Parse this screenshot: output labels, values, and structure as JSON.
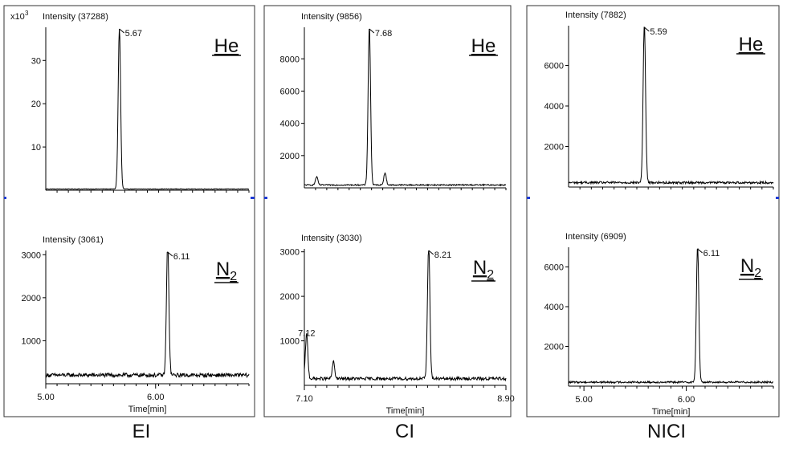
{
  "chart_data": [
    {
      "type": "line",
      "group": "EI",
      "panel": "top",
      "gas": "He",
      "title": "Intensity (37288)",
      "y_multiplier_label": "x10",
      "y_multiplier_exp": "3",
      "xlabel": "",
      "ylabel": "",
      "xlim": [
        5.0,
        6.85
      ],
      "ylim": [
        0,
        37288
      ],
      "x_ticks": [],
      "y_ticks": [
        {
          "value": 10000,
          "label": "10"
        },
        {
          "value": 20000,
          "label": "20"
        },
        {
          "value": 30000,
          "label": "30"
        }
      ],
      "peaks": [
        {
          "rt": 5.67,
          "height": 37288,
          "label": "5.67"
        }
      ],
      "baseline_level": 300,
      "noise_amplitude": 60
    },
    {
      "type": "line",
      "group": "EI",
      "panel": "bottom",
      "gas": "N",
      "gas_subscript": "2",
      "title": "Intensity (3061)",
      "xlabel": "Time[min]",
      "ylabel": "",
      "xlim": [
        5.0,
        6.85
      ],
      "ylim": [
        0,
        3061
      ],
      "x_ticks": [
        {
          "value": 5.0,
          "label": "5.00"
        },
        {
          "value": 6.0,
          "label": "6.00"
        }
      ],
      "y_ticks": [
        {
          "value": 1000,
          "label": "1000"
        },
        {
          "value": 2000,
          "label": "2000"
        },
        {
          "value": 3000,
          "label": "3000"
        }
      ],
      "peaks": [
        {
          "rt": 6.11,
          "height": 3061,
          "label": "6.11"
        }
      ],
      "baseline_level": 200,
      "noise_amplitude": 45
    },
    {
      "type": "line",
      "group": "CI",
      "panel": "top",
      "gas": "He",
      "title": "Intensity (9856)",
      "xlabel": "",
      "ylabel": "",
      "xlim": [
        7.1,
        8.9
      ],
      "ylim": [
        0,
        9856
      ],
      "x_ticks": [],
      "y_ticks": [
        {
          "value": 2000,
          "label": "2000"
        },
        {
          "value": 4000,
          "label": "4000"
        },
        {
          "value": 6000,
          "label": "6000"
        },
        {
          "value": 8000,
          "label": "8000"
        }
      ],
      "peaks": [
        {
          "rt": 7.68,
          "height": 9856,
          "label": "7.68"
        },
        {
          "rt": 7.82,
          "height": 750,
          "label": ""
        },
        {
          "rt": 7.21,
          "height": 500,
          "label": ""
        }
      ],
      "baseline_level": 180,
      "noise_amplitude": 40
    },
    {
      "type": "line",
      "group": "CI",
      "panel": "bottom",
      "gas": "N",
      "gas_subscript": "2",
      "title": "Intensity (3030)",
      "xlabel": "Time[min]",
      "ylabel": "",
      "xlim": [
        7.1,
        8.9
      ],
      "ylim": [
        0,
        3030
      ],
      "x_ticks": [
        {
          "value": 7.1,
          "label": "7.10"
        },
        {
          "value": 8.9,
          "label": "8.90"
        }
      ],
      "y_ticks": [
        {
          "value": 1000,
          "label": "1000"
        },
        {
          "value": 2000,
          "label": "2000"
        },
        {
          "value": 3000,
          "label": "3000"
        }
      ],
      "peaks": [
        {
          "rt": 8.21,
          "height": 3030,
          "label": "8.21"
        },
        {
          "rt": 7.12,
          "height": 1000,
          "label": "7.12"
        },
        {
          "rt": 7.36,
          "height": 380,
          "label": ""
        }
      ],
      "baseline_level": 150,
      "noise_amplitude": 35
    },
    {
      "type": "line",
      "group": "NICI",
      "panel": "top",
      "gas": "He",
      "title": "Intensity (7882)",
      "xlabel": "",
      "ylabel": "",
      "xlim": [
        4.85,
        6.85
      ],
      "ylim": [
        0,
        7882
      ],
      "x_ticks": [],
      "y_ticks": [
        {
          "value": 2000,
          "label": "2000"
        },
        {
          "value": 4000,
          "label": "4000"
        },
        {
          "value": 6000,
          "label": "6000"
        }
      ],
      "peaks": [
        {
          "rt": 5.59,
          "height": 7882,
          "label": "5.59"
        }
      ],
      "baseline_level": 220,
      "noise_amplitude": 55
    },
    {
      "type": "line",
      "group": "NICI",
      "panel": "bottom",
      "gas": "N",
      "gas_subscript": "2",
      "title": "Intensity (6909)",
      "xlabel": "Time[min]",
      "ylabel": "",
      "xlim": [
        4.85,
        6.85
      ],
      "ylim": [
        0,
        6909
      ],
      "x_ticks": [
        {
          "value": 5.0,
          "label": "5.00"
        },
        {
          "value": 6.0,
          "label": "6.00"
        }
      ],
      "y_ticks": [
        {
          "value": 2000,
          "label": "2000"
        },
        {
          "value": 4000,
          "label": "4000"
        },
        {
          "value": 6000,
          "label": "6000"
        }
      ],
      "peaks": [
        {
          "rt": 6.11,
          "height": 6909,
          "label": "6.11"
        }
      ],
      "baseline_level": 200,
      "noise_amplitude": 45
    }
  ],
  "groups": [
    {
      "key": "EI",
      "label": "EI"
    },
    {
      "key": "CI",
      "label": "CI"
    },
    {
      "key": "NICI",
      "label": "NICI"
    }
  ],
  "colors": {
    "trace": "#000000",
    "axis": "#000000",
    "frame": "#333333",
    "marker": "#1f3bd6",
    "text": "#111111"
  }
}
